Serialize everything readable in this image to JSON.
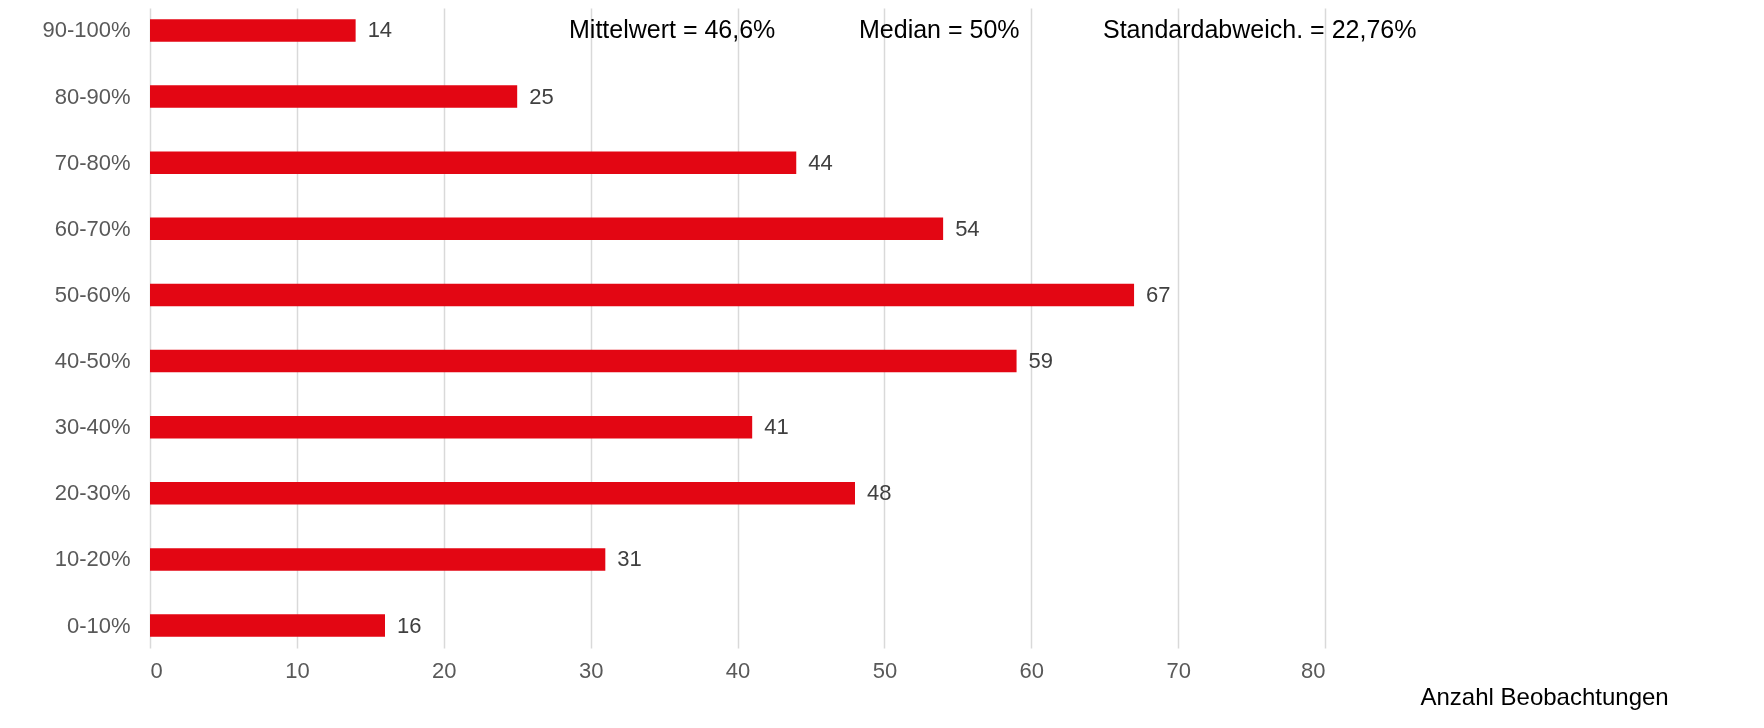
{
  "chart_data": {
    "type": "bar",
    "orientation": "horizontal",
    "categories": [
      "90-100%",
      "80-90%",
      "70-80%",
      "60-70%",
      "50-60%",
      "40-50%",
      "30-40%",
      "20-30%",
      "10-20%",
      "0-10%"
    ],
    "values": [
      14,
      25,
      44,
      54,
      67,
      59,
      41,
      48,
      31,
      16
    ],
    "color": "#e30613",
    "xlabel": "Anzahl Beobachtungen",
    "xlim": [
      0,
      80
    ],
    "xticks": [
      0,
      10,
      20,
      30,
      40,
      50,
      60,
      70,
      80
    ],
    "grid": "x",
    "data_labels": true,
    "annotations": [
      "Mittelwert = 46,6%",
      "Median = 50%",
      "Standardabweich. = 22,76%"
    ]
  }
}
